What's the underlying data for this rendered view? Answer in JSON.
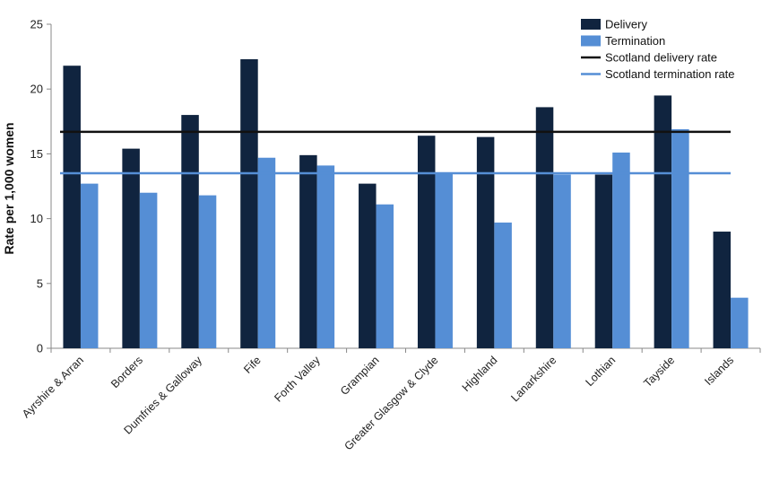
{
  "chart_data": {
    "type": "bar",
    "title": "",
    "xlabel": "",
    "ylabel": "Rate per 1,000 women",
    "ylim": [
      0,
      25
    ],
    "yticks": [
      0,
      5,
      10,
      15,
      20,
      25
    ],
    "grid": false,
    "legend_position": "top-right",
    "categories": [
      "Ayrshire & Arran",
      "Borders",
      "Dumfries & Galloway",
      "Fife",
      "Forth Valley",
      "Grampian",
      "Greater Glasgow & Clyde",
      "Highland",
      "Lanarkshire",
      "Lothian",
      "Tayside",
      "Islands"
    ],
    "series": [
      {
        "name": "Delivery",
        "color": "#10243f",
        "values": [
          21.8,
          15.4,
          18.0,
          22.3,
          14.9,
          12.7,
          16.4,
          16.3,
          18.6,
          13.4,
          19.5,
          9.0
        ]
      },
      {
        "name": "Termination",
        "color": "#558ed5",
        "values": [
          12.7,
          12.0,
          11.8,
          14.7,
          14.1,
          11.1,
          13.5,
          9.7,
          13.4,
          15.1,
          16.9,
          3.9
        ]
      }
    ],
    "reference_lines": [
      {
        "name": "Scotland delivery rate",
        "color": "#111111",
        "value": 16.7
      },
      {
        "name": "Scotland termination rate",
        "color": "#558ed5",
        "value": 13.5
      }
    ]
  }
}
